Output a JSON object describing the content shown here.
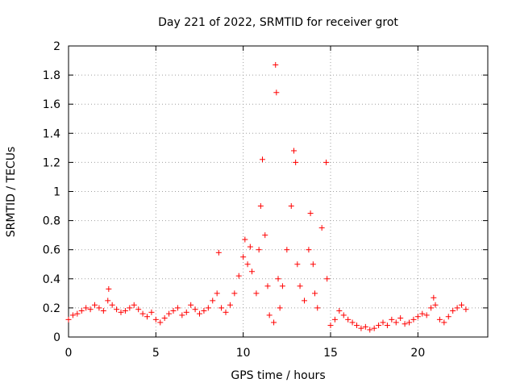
{
  "chart_data": {
    "type": "scatter",
    "title": "Day 221 of 2022, SRMTID for receiver grot",
    "xlabel": "GPS time / hours",
    "ylabel": "SRMTID / TECUs",
    "xlim": [
      0,
      24
    ],
    "ylim": [
      0,
      2
    ],
    "xticks": [
      0,
      5,
      10,
      15,
      20
    ],
    "yticks": [
      0,
      0.2,
      0.4,
      0.6,
      0.8,
      1,
      1.2,
      1.4,
      1.6,
      1.8,
      2
    ],
    "ytick_labels": [
      "0",
      "0.2",
      "0.4",
      "0.6",
      "0.8",
      "1",
      "1.2",
      "1.4",
      "1.6",
      "1.8",
      "2"
    ],
    "xtick_labels": [
      "0",
      "5",
      "10",
      "15",
      "20"
    ],
    "grid": true,
    "marker": "+",
    "color": "#ff0000",
    "series": [
      {
        "name": "SRMTID",
        "x": [
          0.0,
          0.25,
          0.5,
          0.75,
          1.0,
          1.25,
          1.5,
          1.75,
          2.0,
          2.25,
          2.3,
          2.5,
          2.75,
          3.0,
          3.25,
          3.5,
          3.75,
          4.0,
          4.25,
          4.5,
          4.75,
          5.0,
          5.25,
          5.5,
          5.75,
          6.0,
          6.25,
          6.5,
          6.75,
          7.0,
          7.25,
          7.5,
          7.75,
          8.0,
          8.25,
          8.5,
          8.6,
          8.75,
          9.0,
          9.25,
          9.5,
          9.75,
          10.0,
          10.1,
          10.25,
          10.4,
          10.5,
          10.75,
          10.9,
          11.0,
          11.1,
          11.25,
          11.4,
          11.5,
          11.75,
          11.85,
          11.9,
          12.0,
          12.1,
          12.25,
          12.5,
          12.75,
          12.9,
          13.0,
          13.1,
          13.25,
          13.5,
          13.75,
          13.85,
          14.0,
          14.1,
          14.25,
          14.5,
          14.75,
          14.8,
          15.0,
          15.25,
          15.5,
          15.75,
          16.0,
          16.25,
          16.5,
          16.75,
          17.0,
          17.25,
          17.5,
          17.75,
          18.0,
          18.25,
          18.5,
          18.75,
          19.0,
          19.25,
          19.5,
          19.75,
          20.0,
          20.25,
          20.5,
          20.75,
          20.9,
          21.0,
          21.25,
          21.5,
          21.75,
          22.0,
          22.25,
          22.5,
          22.75
        ],
        "y": [
          0.12,
          0.15,
          0.16,
          0.18,
          0.2,
          0.19,
          0.22,
          0.2,
          0.18,
          0.25,
          0.33,
          0.22,
          0.19,
          0.17,
          0.18,
          0.2,
          0.22,
          0.19,
          0.16,
          0.14,
          0.17,
          0.12,
          0.1,
          0.13,
          0.16,
          0.18,
          0.2,
          0.15,
          0.17,
          0.22,
          0.19,
          0.16,
          0.18,
          0.2,
          0.25,
          0.3,
          0.58,
          0.2,
          0.17,
          0.22,
          0.3,
          0.42,
          0.55,
          0.67,
          0.5,
          0.62,
          0.45,
          0.3,
          0.6,
          0.9,
          1.22,
          0.7,
          0.35,
          0.15,
          0.1,
          1.87,
          1.68,
          0.4,
          0.2,
          0.35,
          0.6,
          0.9,
          1.28,
          1.2,
          0.5,
          0.35,
          0.25,
          0.6,
          0.85,
          0.5,
          0.3,
          0.2,
          0.75,
          1.2,
          0.4,
          0.08,
          0.12,
          0.18,
          0.15,
          0.12,
          0.1,
          0.08,
          0.06,
          0.07,
          0.05,
          0.06,
          0.08,
          0.1,
          0.08,
          0.12,
          0.1,
          0.13,
          0.09,
          0.1,
          0.12,
          0.14,
          0.16,
          0.15,
          0.2,
          0.27,
          0.22,
          0.12,
          0.1,
          0.14,
          0.18,
          0.2,
          0.22,
          0.19
        ]
      }
    ]
  }
}
